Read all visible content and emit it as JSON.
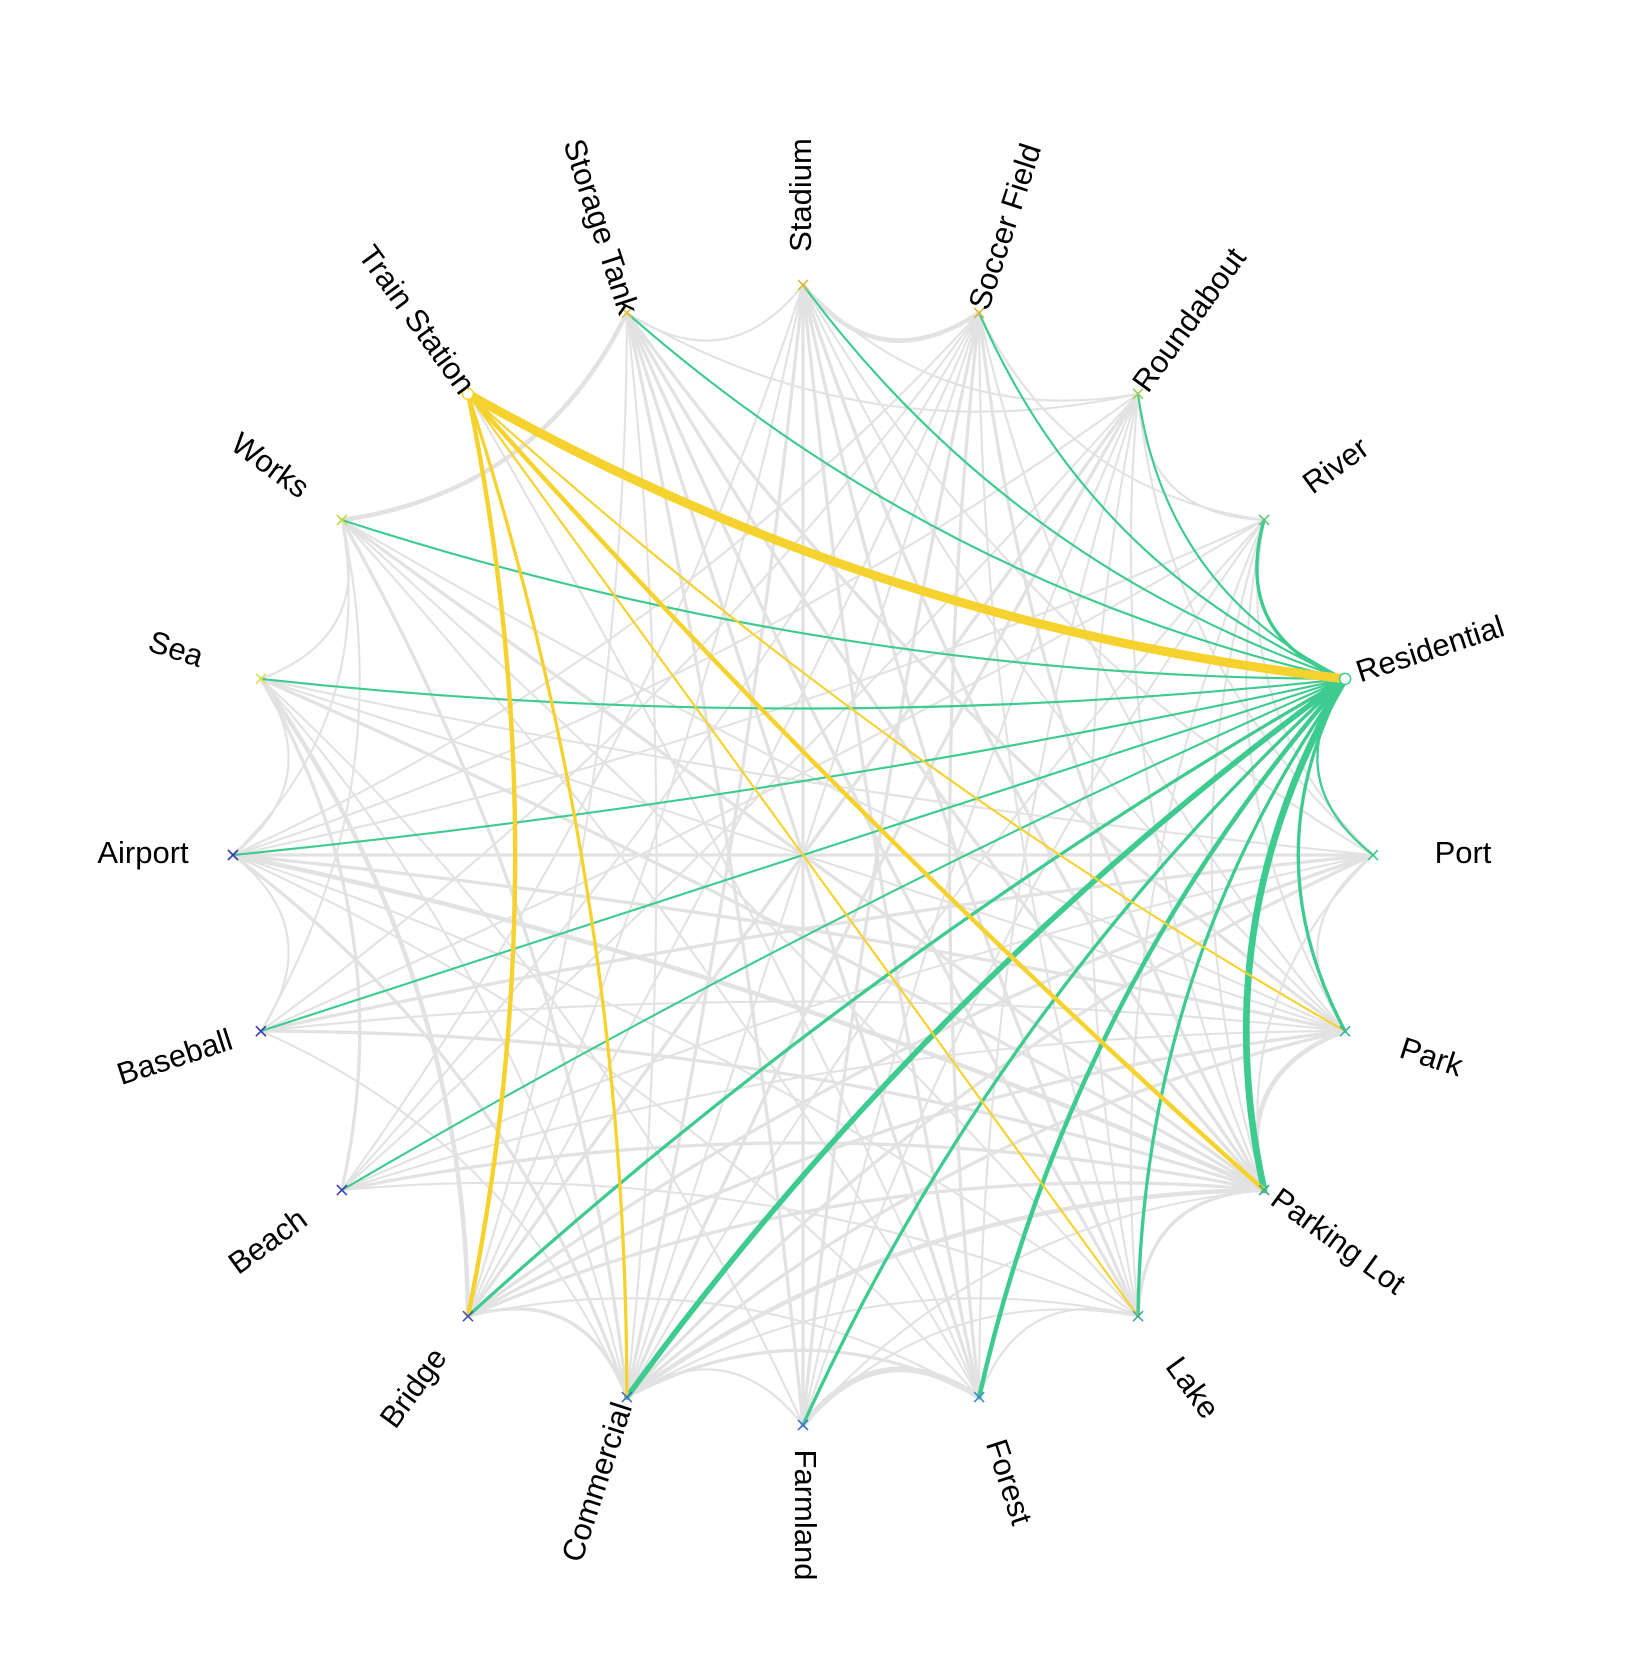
{
  "chart_data": {
    "type": "chord",
    "nodes": [
      {
        "label": "Residential",
        "marker": "circle",
        "color": "#3ecb8f"
      },
      {
        "label": "Port",
        "marker": "x",
        "color": "#3ecb8f"
      },
      {
        "label": "Park",
        "marker": "x",
        "color": "#38b2a0"
      },
      {
        "label": "Parking Lot",
        "marker": "x",
        "color": "#33a89a"
      },
      {
        "label": "Lake",
        "marker": "x",
        "color": "#3aaa9e"
      },
      {
        "label": "Forest",
        "marker": "x",
        "color": "#3a8ec0"
      },
      {
        "label": "Farmland",
        "marker": "x",
        "color": "#3f78c4"
      },
      {
        "label": "Commercial",
        "marker": "x",
        "color": "#3f6fc4"
      },
      {
        "label": "Bridge",
        "marker": "x",
        "color": "#4552b8"
      },
      {
        "label": "Beach",
        "marker": "x",
        "color": "#3f42b0"
      },
      {
        "label": "Baseball",
        "marker": "x",
        "color": "#3b3aa8"
      },
      {
        "label": "Airport",
        "marker": "x",
        "color": "#3b3aa8"
      },
      {
        "label": "Sea",
        "marker": "x",
        "color": "#d8e44a"
      },
      {
        "label": "Works",
        "marker": "x",
        "color": "#c8d83e"
      },
      {
        "label": "Train Station",
        "marker": "circle",
        "color": "#f6d22f"
      },
      {
        "label": "Storage Tank",
        "marker": "x",
        "color": "#e8c03a"
      },
      {
        "label": "Stadium",
        "marker": "x",
        "color": "#e0b83a"
      },
      {
        "label": "Soccer Field",
        "marker": "x",
        "color": "#d8b83c"
      },
      {
        "label": "Roundabout",
        "marker": "x",
        "color": "#9ecb58"
      },
      {
        "label": "River",
        "marker": "x",
        "color": "#5fc77a"
      }
    ],
    "highlighted_groups": [
      {
        "source": "Residential",
        "color": "#3ecb8f",
        "links": [
          {
            "target": "Port",
            "weight": 1
          },
          {
            "target": "Park",
            "weight": 2
          },
          {
            "target": "Parking Lot",
            "weight": 5
          },
          {
            "target": "Lake",
            "weight": 2
          },
          {
            "target": "Forest",
            "weight": 3
          },
          {
            "target": "Farmland",
            "weight": 2
          },
          {
            "target": "Commercial",
            "weight": 4
          },
          {
            "target": "Bridge",
            "weight": 2
          },
          {
            "target": "Beach",
            "weight": 1
          },
          {
            "target": "Baseball",
            "weight": 1
          },
          {
            "target": "Airport",
            "weight": 1
          },
          {
            "target": "Sea",
            "weight": 1
          },
          {
            "target": "Works",
            "weight": 1
          },
          {
            "target": "Storage Tank",
            "weight": 1
          },
          {
            "target": "Stadium",
            "weight": 1
          },
          {
            "target": "Soccer Field",
            "weight": 1
          },
          {
            "target": "Roundabout",
            "weight": 1
          },
          {
            "target": "River",
            "weight": 2
          }
        ]
      },
      {
        "source": "Train Station",
        "color": "#f6d22f",
        "links": [
          {
            "target": "Residential",
            "weight": 7
          },
          {
            "target": "Park",
            "weight": 1
          },
          {
            "target": "Parking Lot",
            "weight": 3
          },
          {
            "target": "Lake",
            "weight": 1
          },
          {
            "target": "Commercial",
            "weight": 2
          },
          {
            "target": "Bridge",
            "weight": 3
          }
        ]
      }
    ],
    "background_link_color": "#e2e2e2",
    "background_links": [
      {
        "a": "Farmland",
        "b": "Forest",
        "weight": 4
      },
      {
        "a": "Works",
        "b": "Storage Tank",
        "weight": 3
      },
      {
        "a": "Stadium",
        "b": "Soccer Field",
        "weight": 3
      },
      {
        "a": "Bridge",
        "b": "Commercial",
        "weight": 2
      },
      {
        "a": "Parking Lot",
        "b": "Lake",
        "weight": 2
      },
      {
        "a": "Park",
        "b": "Parking Lot",
        "weight": 3
      },
      {
        "a": "Sea",
        "b": "Bridge",
        "weight": 3
      },
      {
        "a": "Airport",
        "b": "Parking Lot",
        "weight": 3
      },
      {
        "a": "Airport",
        "b": "Port",
        "weight": 2
      },
      {
        "a": "Sea",
        "b": "Beach",
        "weight": 2
      },
      {
        "a": "Works",
        "b": "Parking Lot",
        "weight": 2
      },
      {
        "a": "Works",
        "b": "Commercial",
        "weight": 2
      },
      {
        "a": "Works",
        "b": "Forest",
        "weight": 1
      },
      {
        "a": "Works",
        "b": "Lake",
        "weight": 1
      },
      {
        "a": "Works",
        "b": "Airport",
        "weight": 1
      },
      {
        "a": "Works",
        "b": "Sea",
        "weight": 1
      },
      {
        "a": "Works",
        "b": "Baseball",
        "weight": 1
      },
      {
        "a": "Works",
        "b": "Park",
        "weight": 1
      },
      {
        "a": "Sea",
        "b": "Airport",
        "weight": 1
      },
      {
        "a": "Sea",
        "b": "Commercial",
        "weight": 1
      },
      {
        "a": "Sea",
        "b": "Parking Lot",
        "weight": 2
      },
      {
        "a": "Sea",
        "b": "Park",
        "weight": 1
      },
      {
        "a": "Sea",
        "b": "Farmland",
        "weight": 1
      },
      {
        "a": "Sea",
        "b": "Port",
        "weight": 1
      },
      {
        "a": "Airport",
        "b": "Baseball",
        "weight": 1
      },
      {
        "a": "Airport",
        "b": "Commercial",
        "weight": 2
      },
      {
        "a": "Airport",
        "b": "Park",
        "weight": 2
      },
      {
        "a": "Airport",
        "b": "Lake",
        "weight": 1
      },
      {
        "a": "Airport",
        "b": "Forest",
        "weight": 1
      },
      {
        "a": "Airport",
        "b": "Soccer Field",
        "weight": 1
      },
      {
        "a": "Airport",
        "b": "Roundabout",
        "weight": 1
      },
      {
        "a": "Airport",
        "b": "River",
        "weight": 1
      },
      {
        "a": "Baseball",
        "b": "Commercial",
        "weight": 1
      },
      {
        "a": "Baseball",
        "b": "Park",
        "weight": 1
      },
      {
        "a": "Baseball",
        "b": "Port",
        "weight": 2
      },
      {
        "a": "Baseball",
        "b": "Parking Lot",
        "weight": 2
      },
      {
        "a": "Baseball",
        "b": "Soccer Field",
        "weight": 1
      },
      {
        "a": "Baseball",
        "b": "River",
        "weight": 1
      },
      {
        "a": "Beach",
        "b": "Parking Lot",
        "weight": 2
      },
      {
        "a": "Beach",
        "b": "Park",
        "weight": 1
      },
      {
        "a": "Beach",
        "b": "Port",
        "weight": 1
      },
      {
        "a": "Beach",
        "b": "Lake",
        "weight": 1
      },
      {
        "a": "Beach",
        "b": "Soccer Field",
        "weight": 1
      },
      {
        "a": "Beach",
        "b": "Roundabout",
        "weight": 1
      },
      {
        "a": "Beach",
        "b": "Stadium",
        "weight": 1
      },
      {
        "a": "Bridge",
        "b": "Park",
        "weight": 2
      },
      {
        "a": "Bridge",
        "b": "Port",
        "weight": 2
      },
      {
        "a": "Bridge",
        "b": "Parking Lot",
        "weight": 2
      },
      {
        "a": "Bridge",
        "b": "Forest",
        "weight": 1
      },
      {
        "a": "Bridge",
        "b": "Soccer Field",
        "weight": 1
      },
      {
        "a": "Bridge",
        "b": "Roundabout",
        "weight": 2
      },
      {
        "a": "Bridge",
        "b": "Storage Tank",
        "weight": 1
      },
      {
        "a": "Bridge",
        "b": "Stadium",
        "weight": 1
      },
      {
        "a": "Commercial",
        "b": "Park",
        "weight": 2
      },
      {
        "a": "Commercial",
        "b": "Port",
        "weight": 2
      },
      {
        "a": "Commercial",
        "b": "Parking Lot",
        "weight": 3
      },
      {
        "a": "Commercial",
        "b": "Lake",
        "weight": 1
      },
      {
        "a": "Commercial",
        "b": "Forest",
        "weight": 2
      },
      {
        "a": "Commercial",
        "b": "Farmland",
        "weight": 1
      },
      {
        "a": "Commercial",
        "b": "Soccer Field",
        "weight": 1
      },
      {
        "a": "Commercial",
        "b": "Roundabout",
        "weight": 2
      },
      {
        "a": "Commercial",
        "b": "River",
        "weight": 1
      },
      {
        "a": "Commercial",
        "b": "Stadium",
        "weight": 2
      },
      {
        "a": "Commercial",
        "b": "Storage Tank",
        "weight": 1
      },
      {
        "a": "Farmland",
        "b": "Storage Tank",
        "weight": 2
      },
      {
        "a": "Farmland",
        "b": "Stadium",
        "weight": 2
      },
      {
        "a": "Farmland",
        "b": "Soccer Field",
        "weight": 2
      },
      {
        "a": "Farmland",
        "b": "Roundabout",
        "weight": 1
      },
      {
        "a": "Farmland",
        "b": "River",
        "weight": 1
      },
      {
        "a": "Farmland",
        "b": "Parking Lot",
        "weight": 1
      },
      {
        "a": "Farmland",
        "b": "Lake",
        "weight": 1
      },
      {
        "a": "Forest",
        "b": "Storage Tank",
        "weight": 2
      },
      {
        "a": "Forest",
        "b": "Stadium",
        "weight": 2
      },
      {
        "a": "Forest",
        "b": "Soccer Field",
        "weight": 2
      },
      {
        "a": "Forest",
        "b": "Roundabout",
        "weight": 1
      },
      {
        "a": "Forest",
        "b": "Lake",
        "weight": 1
      },
      {
        "a": "Forest",
        "b": "Train Station",
        "weight": 1
      },
      {
        "a": "Lake",
        "b": "Storage Tank",
        "weight": 2
      },
      {
        "a": "Lake",
        "b": "Stadium",
        "weight": 2
      },
      {
        "a": "Lake",
        "b": "Soccer Field",
        "weight": 1
      },
      {
        "a": "Lake",
        "b": "Roundabout",
        "weight": 1
      },
      {
        "a": "Lake",
        "b": "River",
        "weight": 1
      },
      {
        "a": "Parking Lot",
        "b": "Storage Tank",
        "weight": 2
      },
      {
        "a": "Parking Lot",
        "b": "Stadium",
        "weight": 2
      },
      {
        "a": "Parking Lot",
        "b": "Soccer Field",
        "weight": 2
      },
      {
        "a": "Parking Lot",
        "b": "Roundabout",
        "weight": 1
      },
      {
        "a": "Parking Lot",
        "b": "River",
        "weight": 1
      },
      {
        "a": "Parking Lot",
        "b": "Port",
        "weight": 1
      },
      {
        "a": "Park",
        "b": "Port",
        "weight": 1
      },
      {
        "a": "Park",
        "b": "Storage Tank",
        "weight": 2
      },
      {
        "a": "Park",
        "b": "Stadium",
        "weight": 1
      },
      {
        "a": "Park",
        "b": "Soccer Field",
        "weight": 1
      },
      {
        "a": "Park",
        "b": "River",
        "weight": 1
      },
      {
        "a": "Port",
        "b": "River",
        "weight": 1
      },
      {
        "a": "Port",
        "b": "Roundabout",
        "weight": 1
      },
      {
        "a": "Port",
        "b": "Stadium",
        "weight": 1
      },
      {
        "a": "Storage Tank",
        "b": "Stadium",
        "weight": 1
      },
      {
        "a": "Storage Tank",
        "b": "Roundabout",
        "weight": 1
      },
      {
        "a": "Stadium",
        "b": "Roundabout",
        "weight": 1
      },
      {
        "a": "Soccer Field",
        "b": "River",
        "weight": 1
      },
      {
        "a": "Roundabout",
        "b": "River",
        "weight": 1
      },
      {
        "a": "Residential",
        "b": "Lake",
        "weight": 1
      },
      {
        "a": "Residential",
        "b": "Park",
        "weight": 1
      },
      {
        "a": "Residential",
        "b": "Port",
        "weight": 1
      }
    ]
  }
}
